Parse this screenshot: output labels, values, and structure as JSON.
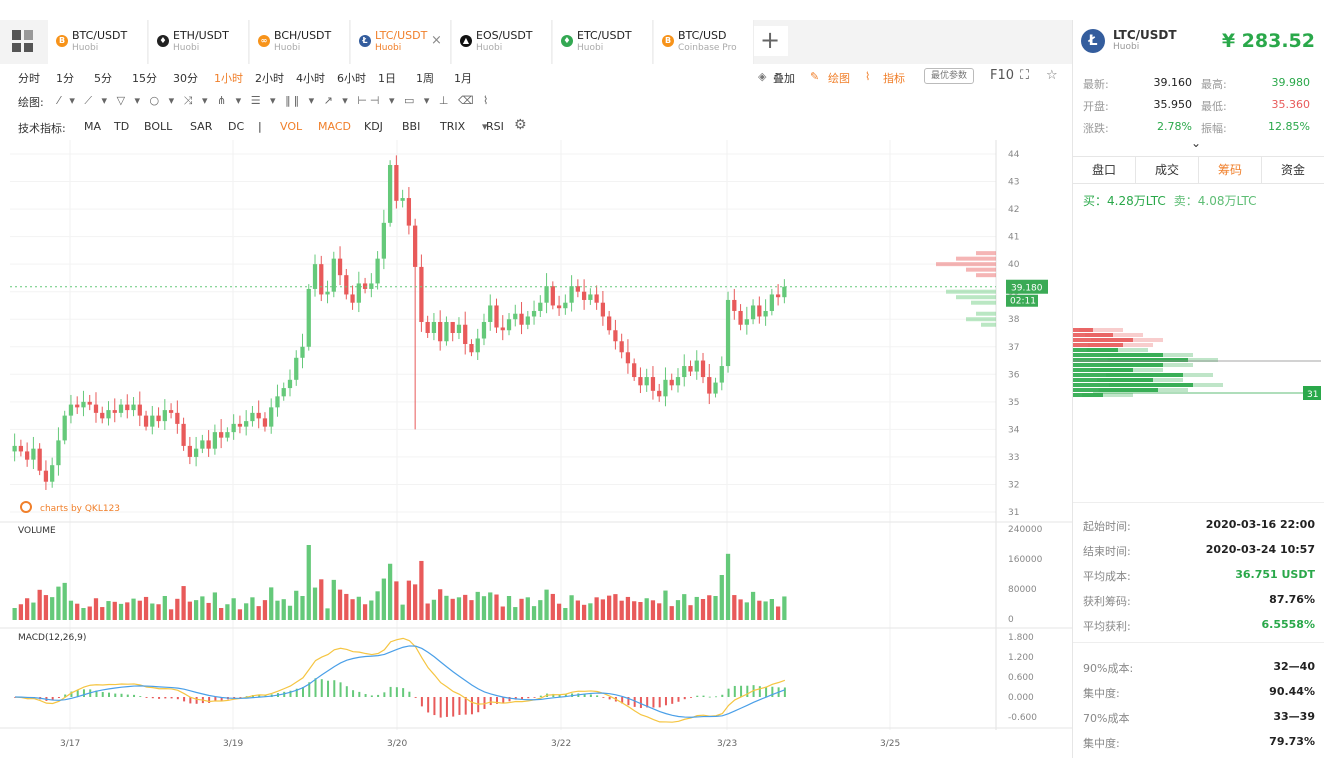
{
  "tabs": [
    {
      "pair": "BTC/USDT",
      "exchange": "Huobi",
      "icon": "bitcoin-icon",
      "color": "#f7931a",
      "glyph": "B"
    },
    {
      "pair": "ETH/USDT",
      "exchange": "Huobi",
      "icon": "ethereum-icon",
      "color": "#222222",
      "glyph": "♦"
    },
    {
      "pair": "BCH/USDT",
      "exchange": "Huobi",
      "icon": "bitcoin-cash-icon",
      "color": "#f7931a",
      "glyph": "∞"
    },
    {
      "pair": "LTC/USDT",
      "exchange": "Huobi",
      "icon": "litecoin-icon",
      "color": "#345d9d",
      "glyph": "Ł",
      "active": true
    },
    {
      "pair": "EOS/USDT",
      "exchange": "Huobi",
      "icon": "eos-icon",
      "color": "#111111",
      "glyph": "▲"
    },
    {
      "pair": "ETC/USDT",
      "exchange": "Huobi",
      "icon": "ethereum-classic-icon",
      "color": "#33a852",
      "glyph": "♦"
    },
    {
      "pair": "BTC/USD",
      "exchange": "Coinbase Pro",
      "icon": "bitcoin-icon",
      "color": "#f7931a",
      "glyph": "B"
    }
  ],
  "add_tab": "+",
  "close_tab": "×",
  "periods": [
    "分时",
    "1分",
    "5分",
    "15分",
    "30分",
    "1小时",
    "2小时",
    "4小时",
    "6小时",
    "1日",
    "1周",
    "1月"
  ],
  "active_period": "1小时",
  "toolbar": {
    "overlay": "叠加",
    "draw": "绘图",
    "indicator": "指标",
    "optimal": "最优参数",
    "f10": "F10"
  },
  "draw_label": "绘图:",
  "indicators_label": "技术指标:",
  "indicators": [
    "MA",
    "TD",
    "BOLL",
    "SAR",
    "DC",
    "|",
    "VOL",
    "MACD",
    "KDJ",
    "BBI",
    "TRIX",
    "RSI"
  ],
  "active_indicators": [
    "VOL",
    "MACD"
  ],
  "watermark": "charts by QKL123",
  "chart_data": [
    {
      "type": "candlestick",
      "y_ticks": [
        44,
        43,
        42,
        41,
        40,
        39,
        38,
        37,
        36,
        35,
        34,
        33,
        32,
        31
      ],
      "ylim": [
        31,
        44
      ],
      "x_ticks": [
        "3/17",
        "3/19",
        "3/20",
        "3/22",
        "3/23",
        "3/25"
      ],
      "last_price": "39.180",
      "countdown": "02:11",
      "close": [
        33.4,
        33.2,
        32.9,
        33.3,
        32.5,
        32.1,
        32.7,
        33.6,
        34.5,
        34.9,
        34.8,
        35.0,
        34.9,
        34.6,
        34.4,
        34.7,
        34.6,
        34.9,
        34.7,
        34.9,
        34.5,
        34.1,
        34.5,
        34.3,
        34.7,
        34.6,
        34.2,
        33.4,
        33.0,
        33.3,
        33.6,
        33.3,
        33.9,
        33.7,
        33.9,
        34.2,
        34.1,
        34.3,
        34.6,
        34.4,
        34.1,
        34.8,
        35.2,
        35.5,
        35.8,
        36.6,
        37.0,
        39.1,
        40.0,
        38.9,
        39.0,
        40.2,
        39.6,
        38.9,
        38.6,
        39.3,
        39.1,
        39.3,
        40.2,
        41.5,
        43.6,
        42.3,
        42.4,
        41.4,
        39.9,
        37.9,
        37.5,
        37.9,
        37.2,
        37.9,
        37.5,
        37.8,
        37.1,
        36.8,
        37.3,
        37.9,
        38.5,
        37.7,
        37.6,
        38.0,
        38.2,
        37.8,
        38.1,
        38.3,
        38.6,
        39.2,
        38.5,
        38.4,
        38.6,
        39.2,
        39.0,
        38.7,
        38.9,
        38.6,
        38.1,
        37.6,
        37.2,
        36.8,
        36.4,
        35.9,
        35.6,
        35.9,
        35.4,
        35.2,
        35.8,
        35.6,
        35.9,
        36.3,
        36.1,
        36.5,
        35.9,
        35.3,
        35.7,
        36.3,
        38.7,
        38.3,
        37.8,
        38.0,
        38.5,
        38.1,
        38.3,
        38.9,
        38.8,
        39.18
      ],
      "volume_yticks": [
        "240000",
        "160000",
        "80000",
        "0"
      ],
      "volume_ylim": [
        0,
        240000
      ],
      "volume_label": "VOLUME",
      "macd_label": "MACD(12,26,9)",
      "macd_yticks": [
        "1.800",
        "1.200",
        "0.600",
        "0.000",
        "-0.600"
      ],
      "macd_ylim": [
        -0.8,
        1.8
      ]
    },
    {
      "type": "depth",
      "right_label": "31"
    }
  ],
  "right": {
    "pair": "LTC/USDT",
    "exchange": "Huobi",
    "price": "¥ 283.52",
    "stats": [
      [
        "最新:",
        "39.160",
        "最高:",
        "39.980"
      ],
      [
        "开盘:",
        "35.950",
        "最低:",
        "35.360"
      ],
      [
        "涨跌:",
        "2.78%",
        "振幅:",
        "12.85%"
      ]
    ],
    "tabs": [
      "盘口",
      "成交",
      "筹码",
      "资金"
    ],
    "active_tab": "筹码",
    "buy": "买：4.28万LTC",
    "sell": "卖：4.08万LTC",
    "chip": [
      [
        "起始时间:",
        "2020-03-16 22:00",
        ""
      ],
      [
        "结束时间:",
        "2020-03-24 10:57",
        ""
      ],
      [
        "平均成本:",
        "36.751 USDT",
        "g"
      ],
      [
        "获利筹码:",
        "87.76%",
        ""
      ],
      [
        "平均获利:",
        "6.5558%",
        "g"
      ]
    ],
    "chip2": [
      [
        "90%成本:",
        "32—40"
      ],
      [
        "集中度:",
        "90.44%"
      ],
      [
        "70%成本",
        "33—39"
      ],
      [
        "集中度:",
        "79.73%"
      ]
    ]
  },
  "colors": {
    "up": "#65c97a",
    "down": "#e85a5a",
    "accent": "#f07f2a",
    "green": "#2aa84a"
  }
}
